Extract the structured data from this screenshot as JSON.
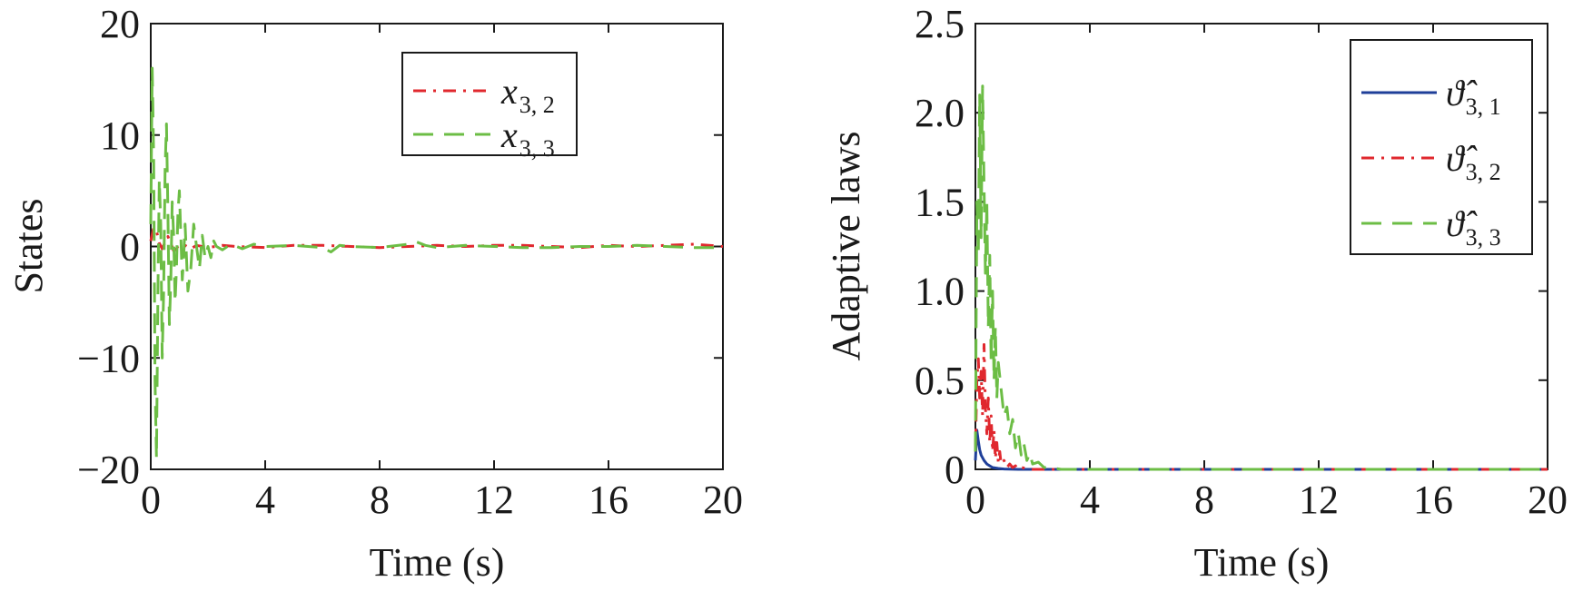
{
  "chart_data": [
    {
      "type": "line",
      "title": "",
      "xlabel": "Time (s)",
      "ylabel": "States",
      "xlim": [
        0,
        20
      ],
      "ylim": [
        -20,
        20
      ],
      "xticks": [
        "0",
        "4",
        "8",
        "12",
        "16",
        "20"
      ],
      "yticks": [
        "20",
        "10",
        "0",
        "−10",
        "−20"
      ],
      "grid": false,
      "legend_position": "top-right",
      "series": [
        {
          "name": "x",
          "name_sub": "3, 2",
          "color": "#e0282e",
          "style": "dash-dot",
          "x": [
            0,
            0.1,
            0.2,
            0.3,
            0.4,
            0.5,
            0.6,
            0.7,
            0.8,
            0.9,
            1.0,
            1.2,
            1.4,
            1.6,
            1.8,
            2.0,
            2.5,
            3,
            4,
            5,
            6,
            7,
            8,
            9,
            10,
            11,
            12,
            13,
            14,
            15,
            16,
            17,
            18,
            19,
            20
          ],
          "y": [
            0.5,
            1.7,
            1.4,
            0.3,
            -0.2,
            0.4,
            0.9,
            0.3,
            -0.4,
            -0.2,
            0.2,
            0.1,
            -0.2,
            0.1,
            0.0,
            -0.1,
            0.1,
            0.0,
            -0.1,
            0.1,
            0.1,
            0.0,
            -0.1,
            0.0,
            0.1,
            0.0,
            0.1,
            0.1,
            0.0,
            -0.1,
            0.1,
            0.0,
            0.1,
            0.2,
            0.0
          ]
        },
        {
          "name": "x",
          "name_sub": "3, 3",
          "color": "#6cbd45",
          "style": "dashed",
          "x": [
            0,
            0.05,
            0.1,
            0.15,
            0.2,
            0.25,
            0.3,
            0.35,
            0.4,
            0.45,
            0.5,
            0.55,
            0.6,
            0.65,
            0.7,
            0.75,
            0.8,
            0.85,
            0.9,
            0.95,
            1.0,
            1.05,
            1.1,
            1.15,
            1.2,
            1.3,
            1.4,
            1.5,
            1.6,
            1.7,
            1.8,
            1.9,
            2.0,
            2.1,
            2.2,
            2.3,
            2.5,
            2.8,
            3.2,
            3.6,
            4.0,
            5,
            6,
            6.3,
            6.6,
            7,
            8,
            9,
            9.3,
            9.6,
            10,
            11,
            12,
            13,
            14,
            15,
            16,
            17,
            18,
            19,
            20
          ],
          "y": [
            2,
            16,
            8,
            -12,
            -19,
            -4,
            6,
            2,
            -10,
            -4,
            7,
            11,
            3,
            -7,
            -3,
            4,
            1,
            -5,
            -2,
            3,
            5,
            1,
            -3,
            -1,
            2,
            -4,
            -2,
            2,
            0,
            -2,
            1,
            -1,
            0,
            -1,
            0.5,
            0,
            -0.3,
            0.2,
            -0.2,
            0.2,
            0,
            0.1,
            -0.1,
            -0.5,
            0.1,
            0.0,
            -0.1,
            0.2,
            0.4,
            0.1,
            -0.1,
            0.1,
            0.0,
            -0.1,
            -0.1,
            0.0,
            0.0,
            0.1,
            0.0,
            -0.1,
            -0.1
          ]
        }
      ]
    },
    {
      "type": "line",
      "title": "",
      "xlabel": "Time (s)",
      "ylabel": "Adaptive laws",
      "xlim": [
        0,
        20
      ],
      "ylim": [
        0,
        2.5
      ],
      "xticks": [
        "0",
        "4",
        "8",
        "12",
        "16",
        "20"
      ],
      "yticks": [
        "2.5",
        "2.0",
        "1.5",
        "1.0",
        "0.5",
        "0"
      ],
      "grid": false,
      "legend_position": "top-right",
      "series": [
        {
          "name": "ϑ̂",
          "name_sub": "3, 1",
          "color": "#1f3f99",
          "style": "solid",
          "x": [
            0,
            0.05,
            0.1,
            0.15,
            0.2,
            0.3,
            0.4,
            0.5,
            0.6,
            0.8,
            1.0,
            1.5,
            2,
            4,
            8,
            12,
            16,
            20
          ],
          "y": [
            0.05,
            0.22,
            0.16,
            0.11,
            0.08,
            0.05,
            0.03,
            0.02,
            0.01,
            0.005,
            0.002,
            0.0,
            0.0,
            0.0,
            0.0,
            0.0,
            0.0,
            0.0
          ]
        },
        {
          "name": "ϑ̂",
          "name_sub": "3, 2",
          "color": "#e0282e",
          "style": "dash-dot",
          "x": [
            0,
            0.05,
            0.1,
            0.15,
            0.2,
            0.25,
            0.3,
            0.35,
            0.4,
            0.45,
            0.5,
            0.55,
            0.6,
            0.65,
            0.7,
            0.75,
            0.8,
            0.85,
            0.9,
            1.0,
            1.1,
            1.2,
            1.3,
            1.4,
            1.5,
            1.6,
            2,
            4,
            8,
            12,
            16,
            20
          ],
          "y": [
            0.1,
            0.5,
            0.62,
            0.4,
            0.55,
            0.3,
            0.7,
            0.35,
            0.2,
            0.4,
            0.15,
            0.3,
            0.1,
            0.22,
            0.06,
            0.15,
            0.04,
            0.1,
            0.03,
            0.05,
            0.01,
            0.03,
            0.01,
            0.02,
            0.0,
            0.01,
            0.0,
            0.0,
            0.0,
            0.0,
            0.0,
            0.0
          ]
        },
        {
          "name": "ϑ̂",
          "name_sub": "3, 3",
          "color": "#6cbd45",
          "style": "dashed",
          "x": [
            0,
            0.05,
            0.1,
            0.15,
            0.2,
            0.25,
            0.3,
            0.35,
            0.4,
            0.45,
            0.5,
            0.55,
            0.6,
            0.65,
            0.7,
            0.75,
            0.8,
            0.9,
            1.0,
            1.1,
            1.2,
            1.3,
            1.4,
            1.5,
            1.6,
            1.7,
            1.8,
            1.9,
            2.0,
            2.2,
            2.4,
            2.6,
            3,
            4,
            6,
            8,
            10,
            12,
            16,
            20
          ],
          "y": [
            0.1,
            1.5,
            1.2,
            2.1,
            1.3,
            2.15,
            1.6,
            1.1,
            1.5,
            0.8,
            1.2,
            0.6,
            1.0,
            0.5,
            0.8,
            0.4,
            0.6,
            0.45,
            0.3,
            0.35,
            0.2,
            0.28,
            0.12,
            0.2,
            0.08,
            0.14,
            0.05,
            0.09,
            0.03,
            0.04,
            0.01,
            0.01,
            0.0,
            0.0,
            0.0,
            0.0,
            0.0,
            0.0,
            0.0,
            0.0
          ]
        }
      ]
    }
  ]
}
